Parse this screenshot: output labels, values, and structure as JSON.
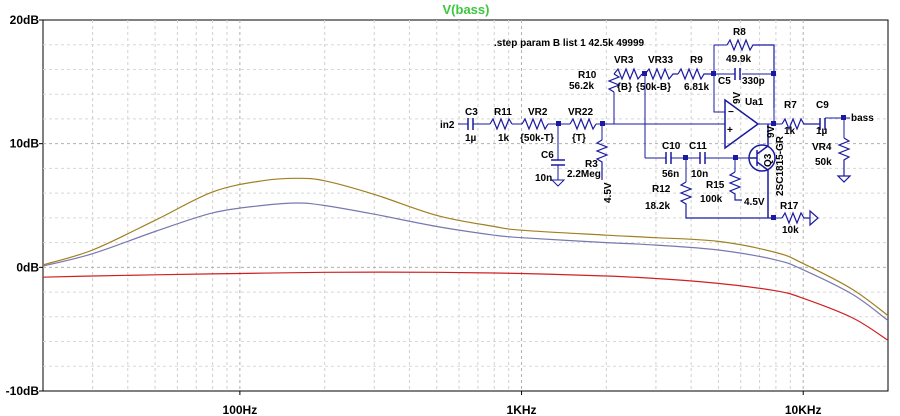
{
  "chart_data": {
    "type": "line",
    "title": "V(bass)",
    "title_color": "#3cc83c",
    "xscale": "log",
    "xlim": [
      20,
      20000
    ],
    "ylim": [
      -10,
      20
    ],
    "grid": true,
    "x_ticks": [
      {
        "value": 100,
        "label": "100Hz"
      },
      {
        "value": 1000,
        "label": "1KHz"
      },
      {
        "value": 10000,
        "label": "10KHz"
      }
    ],
    "y_ticks": [
      {
        "value": 20,
        "label": "20dB"
      },
      {
        "value": 10,
        "label": "10dB"
      },
      {
        "value": 0,
        "label": "0dB"
      },
      {
        "value": -10,
        "label": "-10dB"
      }
    ],
    "series": [
      {
        "color": "#a08020",
        "x": [
          20,
          30,
          50,
          80,
          120,
          160,
          200,
          300,
          500,
          800,
          1000,
          2000,
          3000,
          5000,
          8000,
          10000,
          15000,
          20000
        ],
        "y": [
          0.2,
          1.4,
          3.8,
          6.1,
          7.0,
          7.2,
          7.0,
          5.9,
          4.2,
          3.3,
          3.0,
          2.6,
          2.4,
          2.1,
          1.2,
          0.3,
          -1.8,
          -3.9
        ]
      },
      {
        "color": "#7878b0",
        "x": [
          20,
          30,
          50,
          80,
          120,
          160,
          200,
          300,
          500,
          800,
          1000,
          2000,
          3000,
          5000,
          8000,
          10000,
          15000,
          20000
        ],
        "y": [
          0.1,
          1.1,
          2.9,
          4.4,
          5.0,
          5.2,
          5.0,
          4.3,
          3.3,
          2.6,
          2.4,
          2.0,
          1.8,
          1.4,
          0.6,
          -0.2,
          -2.2,
          -4.3
        ]
      },
      {
        "color": "#d02020",
        "x": [
          20,
          30,
          50,
          100,
          200,
          500,
          1000,
          2000,
          3000,
          5000,
          8000,
          10000,
          15000,
          20000
        ],
        "y": [
          -0.8,
          -0.7,
          -0.6,
          -0.5,
          -0.4,
          -0.4,
          -0.5,
          -0.7,
          -0.9,
          -1.3,
          -1.9,
          -2.5,
          -4.1,
          -5.9
        ]
      }
    ]
  },
  "schematic": {
    "directive": ".step param B list 1 42.5k 49999",
    "labels": {
      "in": "in2",
      "c3": "C3",
      "c3v": "1µ",
      "r11": "R11",
      "r11v": "1k",
      "vr2": "VR2",
      "vr2v": "{50k-T}",
      "vr22": "VR22",
      "vr22v": "{T}",
      "c6": "C6",
      "c6v": "10n",
      "r3": "R3",
      "r3v": "2.2Meg",
      "b45a": "4.5V",
      "r10": "R10",
      "r10v": "56.2k",
      "vr3": "VR3",
      "vr3v": "{B}",
      "vr33": "VR33",
      "vr33v": "{50k-B}",
      "r9": "R9",
      "r9v": "6.81k",
      "r8": "R8",
      "r8v": "49.9k",
      "c5": "C5",
      "c5v": "330p",
      "u1": "Ua1",
      "v9a": "9V",
      "r7": "R7",
      "r7v": "1k",
      "c9": "C9",
      "c9v": "1µ",
      "out": "bass",
      "vr4": "VR4",
      "vr4v": "50k",
      "c10": "C10",
      "c10v": "56n",
      "c11": "C11",
      "c11v": "10n",
      "r12": "R12",
      "r12v": "18.2k",
      "r15": "R15",
      "r15v": "100k",
      "b45b": "4.5V",
      "q3": "Q3",
      "q3v": "2SC1815-GR",
      "v9b": "9V",
      "r17": "R17",
      "r17v": "10k"
    }
  }
}
